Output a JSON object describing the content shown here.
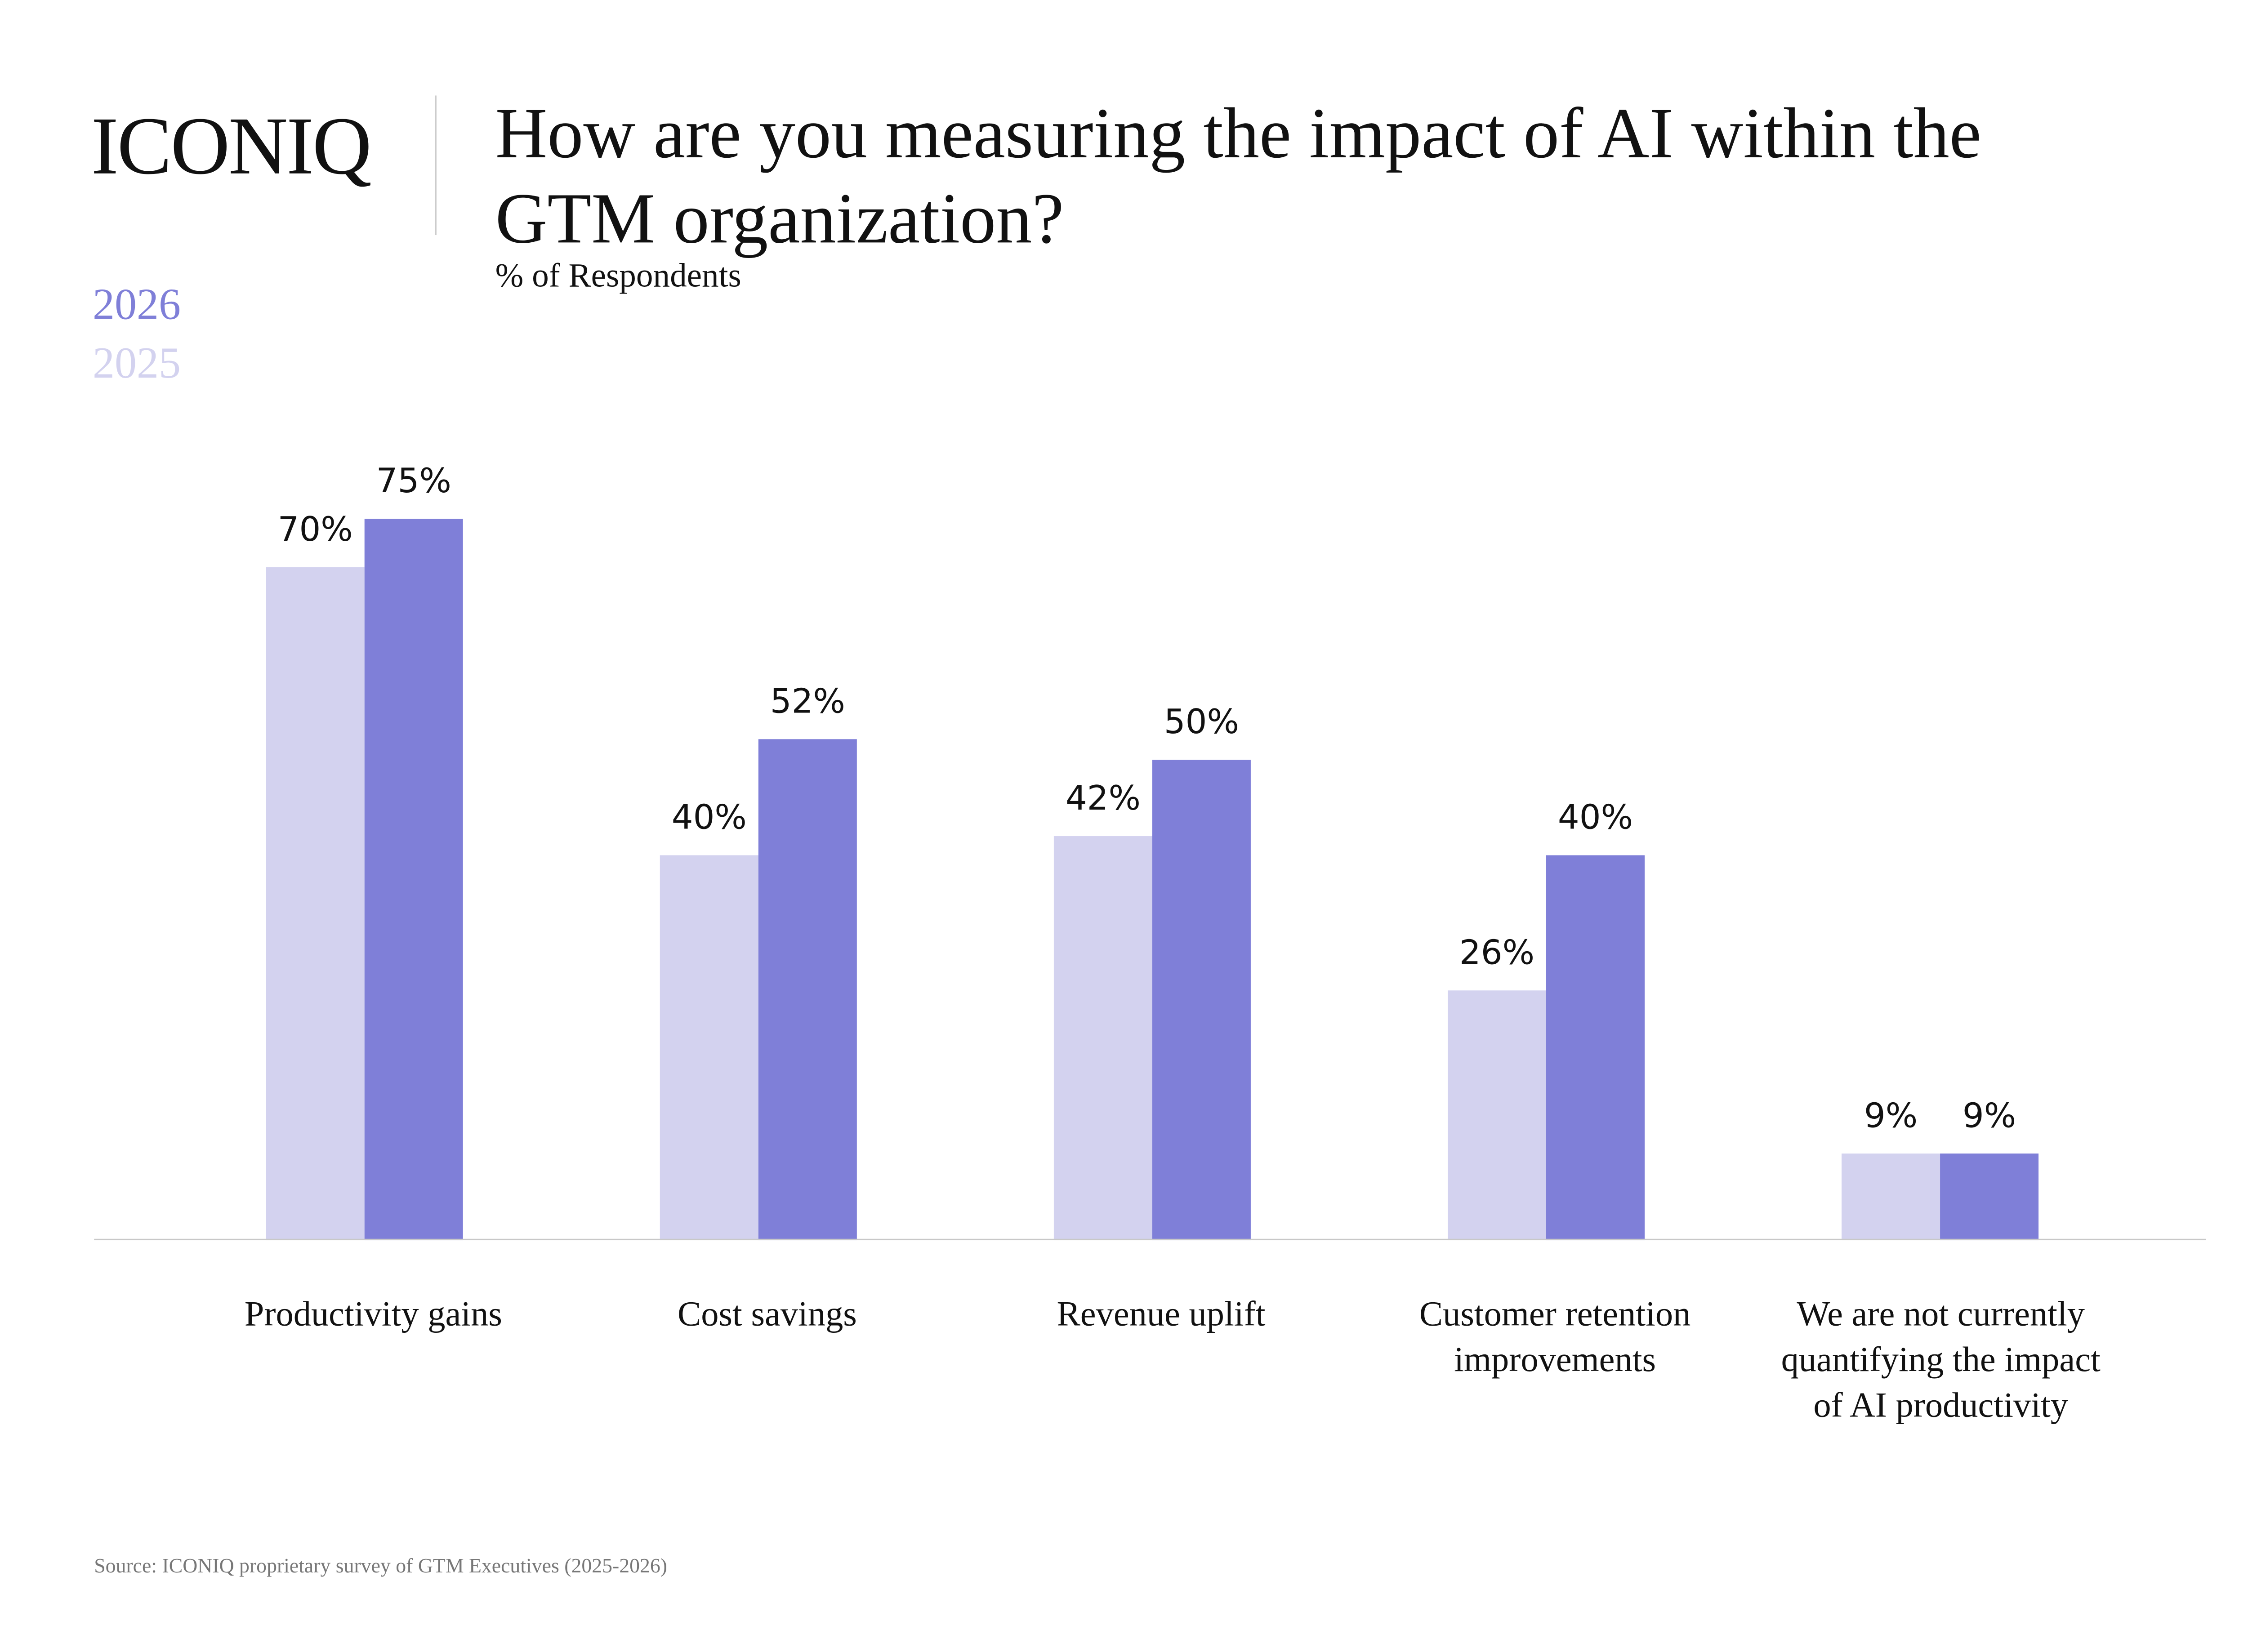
{
  "logo": "ICONIQ",
  "title": "How are you measuring the impact of AI within the GTM organization?",
  "subtitle": "% of Respondents",
  "source": "Source: ICONIQ proprietary survey of GTM Executives (2025-2026)",
  "chart_data": {
    "type": "bar",
    "categories": [
      "Productivity gains",
      "Cost savings",
      "Revenue uplift",
      "Customer retention improvements",
      "We are not currently quantifying the impact of AI productivity"
    ],
    "series": [
      {
        "name": "2025",
        "color": "#d3d2ef",
        "values": [
          70,
          40,
          42,
          26,
          9
        ]
      },
      {
        "name": "2026",
        "color": "#7f7fd8",
        "values": [
          75,
          52,
          50,
          40,
          9
        ]
      }
    ],
    "value_suffix": "%",
    "ylim": [
      0,
      80
    ],
    "grid": false,
    "legend": "top-left"
  }
}
